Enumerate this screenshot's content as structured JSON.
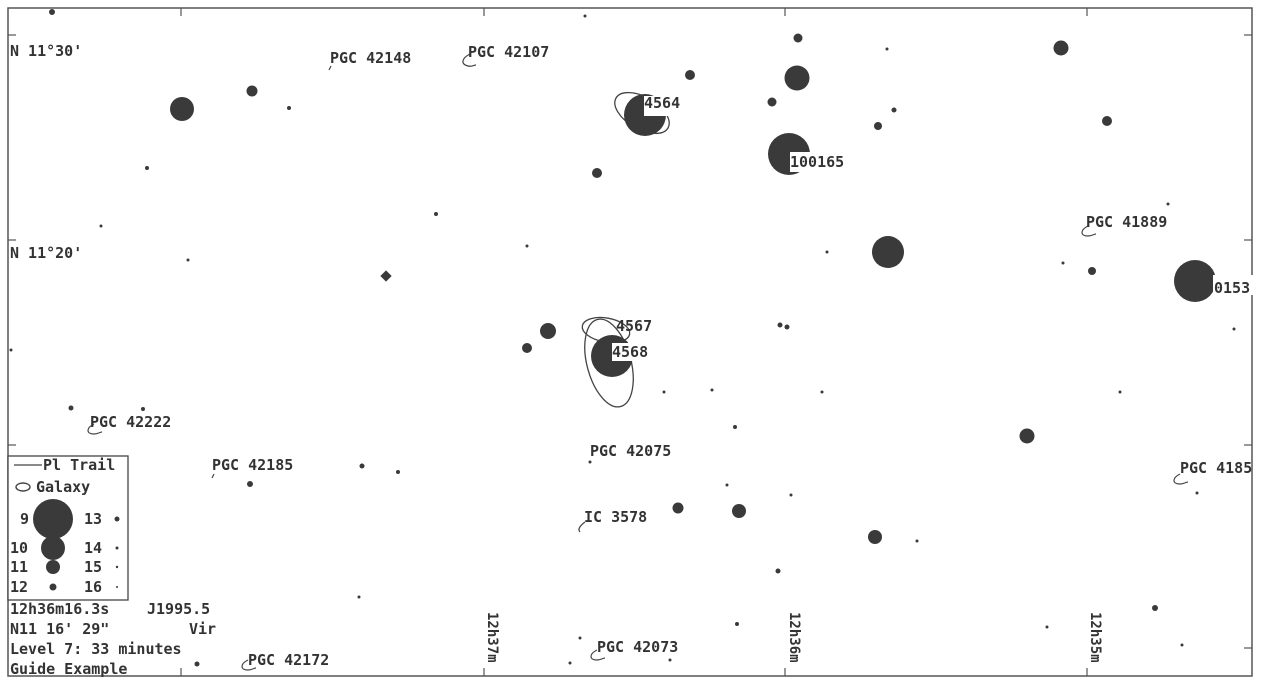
{
  "colors": {
    "ink": "#333333",
    "star": "#3a3a3a",
    "paper": "#ffffff"
  },
  "dec_labels": [
    "N 11°30'",
    "N 11°20'"
  ],
  "ra_labels": [
    "12h37m",
    "12h36m",
    "12h35m"
  ],
  "objects": {
    "pgc42148": "PGC 42148",
    "pgc42107": "PGC 42107",
    "ngc4564": "4564",
    "ic100165": "100165",
    "pgc41889": "PGC 41889",
    "edge0153": "0153",
    "ngc4567": "4567",
    "ngc4568": "4568",
    "pgc42222": "PGC 42222",
    "pgc42075": "PGC 42075",
    "pgc42185": "PGC 42185",
    "pgc4185": "PGC 4185",
    "ic3578": "IC 3578",
    "pgc42073": "PGC 42073",
    "pgc42172": "PGC 42172"
  },
  "legend": {
    "trail": "Pl Trail",
    "galaxy": "Galaxy",
    "magnitudes": [
      "9",
      "10",
      "11",
      "12",
      "13",
      "14",
      "15",
      "16"
    ]
  },
  "info": {
    "ra": "12h36m16.3s",
    "epoch": "J1995.5",
    "dec": "N11 16' 29\"",
    "constellation": "Vir",
    "level": "Level 7: 33 minutes",
    "title": "Guide Example"
  }
}
